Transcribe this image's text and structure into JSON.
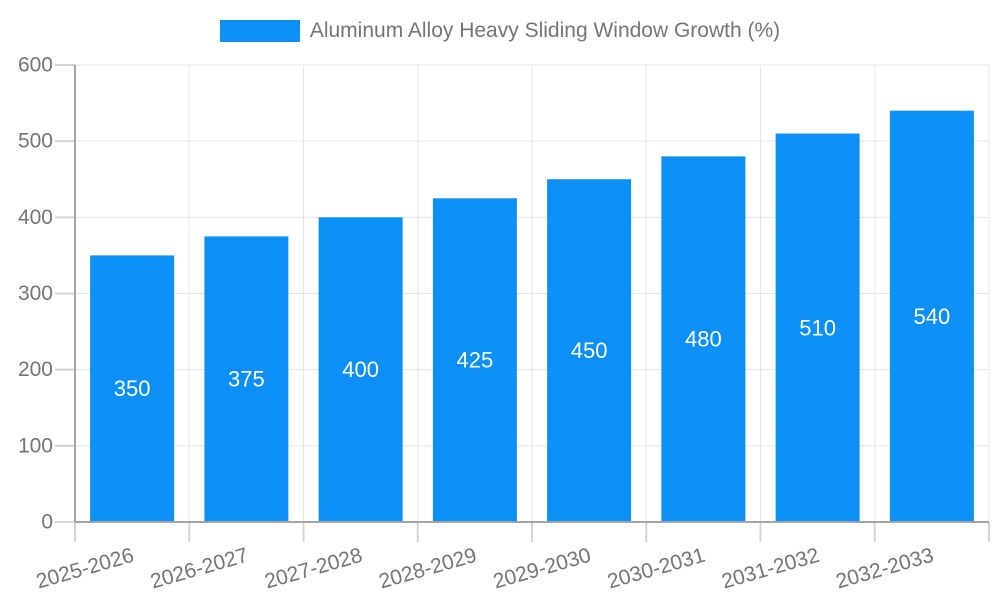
{
  "chart_data": {
    "type": "bar",
    "legend": "Aluminum Alloy Heavy Sliding Window Growth (%)",
    "legend_position": "top",
    "categories": [
      "2025-2026",
      "2026-2027",
      "2027-2028",
      "2028-2029",
      "2029-2030",
      "2030-2031",
      "2031-2032",
      "2032-2033"
    ],
    "values": [
      350,
      375,
      400,
      425,
      450,
      480,
      510,
      540
    ],
    "y_ticks": [
      0,
      100,
      200,
      300,
      400,
      500,
      600
    ],
    "ylim": [
      0,
      600
    ],
    "xlabel": "",
    "ylabel": "",
    "grid": true,
    "colors": {
      "bar": "#0d90f5",
      "value_label": "#ffffff",
      "axis_text": "#757575",
      "grid_line": "#e5e5e5",
      "tick_line": "#d4d4d4",
      "axis_line": "#a5a5a5",
      "background": "#ffffff"
    }
  }
}
